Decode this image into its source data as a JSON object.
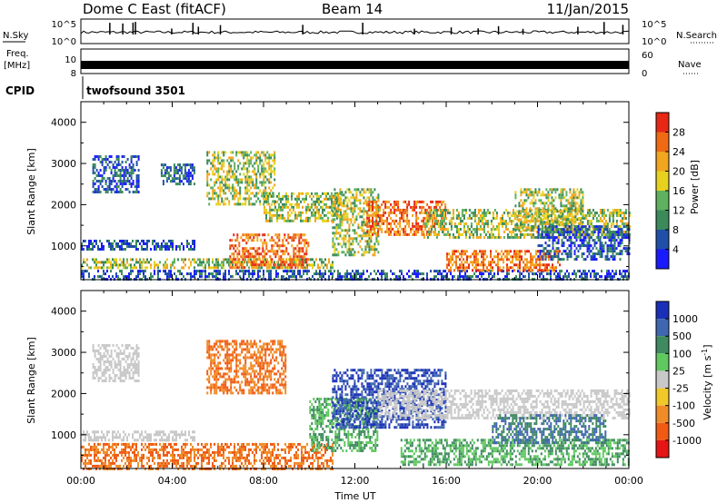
{
  "header": {
    "title": "Dome C East (fitACF)",
    "beam": "Beam 14",
    "date": "11/Jan/2015"
  },
  "strip": {
    "nsky_label": "N.Sky",
    "nsky_ticks": [
      "10^5",
      "10^0"
    ],
    "nsearch_label": "N.Search",
    "freq_label_1": "Freq.",
    "freq_label_2": "[MHz]",
    "freq_ticks": [
      "10",
      "8"
    ],
    "nave_label": "Nave",
    "nave_ticks": [
      "60",
      "0"
    ],
    "cpid_label": "CPID",
    "cpid_value": "twofsound 3501"
  },
  "colors": {
    "power": [
      "#1a1aff",
      "#1f4fa8",
      "#3a8a5a",
      "#5fb05f",
      "#e6d21e",
      "#f2a51e",
      "#f06a14",
      "#e62814"
    ],
    "velocity": [
      "#1a2fb8",
      "#3f66b0",
      "#3f8a60",
      "#5fc85f",
      "#c8c8c8",
      "#f0c828",
      "#f08c28",
      "#f05a14",
      "#e61414"
    ]
  },
  "chart_data": [
    {
      "type": "heatmap",
      "panel": "power",
      "ylabel": "Slant Range [km]",
      "yticks": [
        "1000",
        "2000",
        "3000",
        "4000"
      ],
      "ylim": [
        180,
        4500
      ],
      "xlim_hours": [
        0,
        24
      ],
      "colorbar": {
        "label": "Power [dB]",
        "ticks": [
          "4",
          "8",
          "12",
          "16",
          "20",
          "24",
          "28"
        ],
        "range": [
          0,
          32
        ]
      },
      "bands": [
        {
          "t": [
            0,
            24
          ],
          "r": [
            180,
            420
          ],
          "level": "low"
        },
        {
          "t": [
            0,
            11
          ],
          "r": [
            450,
            700
          ],
          "level": "mid"
        },
        {
          "t": [
            0,
            5
          ],
          "r": [
            900,
            1150
          ],
          "level": "low"
        },
        {
          "t": [
            0.5,
            2.5
          ],
          "r": [
            2300,
            3200
          ],
          "level": "low"
        },
        {
          "t": [
            3.5,
            5
          ],
          "r": [
            2500,
            3000
          ],
          "level": "low"
        },
        {
          "t": [
            5.5,
            8.5
          ],
          "r": [
            2000,
            3300
          ],
          "level": "mid"
        },
        {
          "t": [
            6.5,
            10
          ],
          "r": [
            500,
            1300
          ],
          "level": "high"
        },
        {
          "t": [
            8,
            11.5
          ],
          "r": [
            1600,
            2300
          ],
          "level": "mid"
        },
        {
          "t": [
            11,
            13
          ],
          "r": [
            800,
            2400
          ],
          "level": "mid"
        },
        {
          "t": [
            12.5,
            16
          ],
          "r": [
            1300,
            2100
          ],
          "level": "high"
        },
        {
          "t": [
            15,
            24
          ],
          "r": [
            1200,
            1900
          ],
          "level": "mid"
        },
        {
          "t": [
            16,
            21
          ],
          "r": [
            400,
            900
          ],
          "level": "high"
        },
        {
          "t": [
            19,
            22
          ],
          "r": [
            1400,
            2400
          ],
          "level": "mid"
        },
        {
          "t": [
            20,
            24
          ],
          "r": [
            700,
            1500
          ],
          "level": "low"
        }
      ]
    },
    {
      "type": "heatmap",
      "panel": "velocity",
      "ylabel": "Slant Range [km]",
      "yticks": [
        "1000",
        "2000",
        "3000",
        "4000"
      ],
      "ylim": [
        180,
        4500
      ],
      "xlim_hours": [
        0,
        24
      ],
      "xticks": [
        "00:00",
        "04:00",
        "08:00",
        "12:00",
        "16:00",
        "20:00",
        "00:00"
      ],
      "xlabel": "Time UT",
      "colorbar": {
        "label": "Velocity [m s",
        "label_sup": "-1",
        "label_end": "]",
        "ticks": [
          "1000",
          "500",
          "100",
          "25",
          "-25",
          "-100",
          "-500",
          "-1000"
        ]
      },
      "bands": [
        {
          "t": [
            0,
            11
          ],
          "r": [
            200,
            800
          ],
          "level": "orange"
        },
        {
          "t": [
            0,
            5
          ],
          "r": [
            850,
            1100
          ],
          "level": "gray"
        },
        {
          "t": [
            0.5,
            2.5
          ],
          "r": [
            2300,
            3200
          ],
          "level": "gray"
        },
        {
          "t": [
            5.5,
            9
          ],
          "r": [
            2000,
            3300
          ],
          "level": "orange"
        },
        {
          "t": [
            10,
            13
          ],
          "r": [
            600,
            1900
          ],
          "level": "green"
        },
        {
          "t": [
            11,
            16
          ],
          "r": [
            1200,
            2600
          ],
          "level": "blue"
        },
        {
          "t": [
            13,
            24
          ],
          "r": [
            1400,
            2100
          ],
          "level": "gray"
        },
        {
          "t": [
            14,
            24
          ],
          "r": [
            300,
            900
          ],
          "level": "green"
        },
        {
          "t": [
            18,
            23
          ],
          "r": [
            800,
            1500
          ],
          "level": "darkgreen"
        }
      ]
    }
  ]
}
